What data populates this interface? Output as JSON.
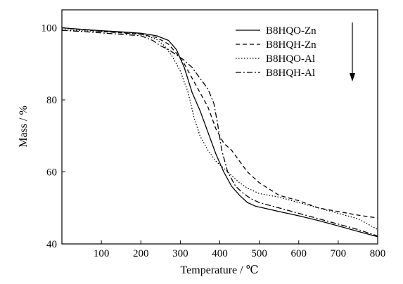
{
  "chart_data": {
    "type": "line",
    "xlabel": "Temperature / ℃",
    "ylabel": "Mass / %",
    "xlim": [
      0,
      800
    ],
    "ylim": [
      40,
      105
    ],
    "x_ticks": [
      100,
      200,
      300,
      400,
      500,
      600,
      700,
      800
    ],
    "y_ticks": [
      40,
      60,
      80,
      100
    ],
    "grid": false,
    "legend_position": "top-right",
    "legend_arrow": "down",
    "series": [
      {
        "name": "B8HQO-Zn",
        "style": "solid",
        "points": [
          [
            0,
            100
          ],
          [
            50,
            99.6
          ],
          [
            100,
            99.2
          ],
          [
            150,
            98.9
          ],
          [
            200,
            98.5
          ],
          [
            240,
            97.8
          ],
          [
            270,
            96.5
          ],
          [
            290,
            94
          ],
          [
            310,
            89
          ],
          [
            330,
            82
          ],
          [
            350,
            77
          ],
          [
            370,
            71
          ],
          [
            390,
            65
          ],
          [
            410,
            60
          ],
          [
            430,
            56
          ],
          [
            450,
            53.5
          ],
          [
            470,
            51.5
          ],
          [
            490,
            50.5
          ],
          [
            510,
            50
          ],
          [
            550,
            49
          ],
          [
            600,
            47.8
          ],
          [
            650,
            46.5
          ],
          [
            700,
            45
          ],
          [
            750,
            43.5
          ],
          [
            800,
            42
          ]
        ]
      },
      {
        "name": "B8HQH-Zn",
        "style": "dashed",
        "points": [
          [
            0,
            100
          ],
          [
            50,
            99.5
          ],
          [
            100,
            99
          ],
          [
            150,
            98.6
          ],
          [
            200,
            98.2
          ],
          [
            240,
            97.3
          ],
          [
            270,
            95.5
          ],
          [
            290,
            93
          ],
          [
            310,
            90
          ],
          [
            330,
            86
          ],
          [
            350,
            82
          ],
          [
            370,
            78
          ],
          [
            390,
            72
          ],
          [
            410,
            68
          ],
          [
            430,
            66
          ],
          [
            450,
            63
          ],
          [
            470,
            60
          ],
          [
            500,
            57
          ],
          [
            550,
            53.5
          ],
          [
            600,
            52
          ],
          [
            650,
            50
          ],
          [
            700,
            49
          ],
          [
            750,
            48
          ],
          [
            800,
            47.2
          ]
        ]
      },
      {
        "name": "B8HQO-Al",
        "style": "dotted",
        "points": [
          [
            0,
            99.5
          ],
          [
            50,
            99.2
          ],
          [
            100,
            99
          ],
          [
            150,
            98.7
          ],
          [
            200,
            98.3
          ],
          [
            240,
            96.8
          ],
          [
            260,
            95
          ],
          [
            280,
            92
          ],
          [
            300,
            88
          ],
          [
            320,
            82
          ],
          [
            335,
            75
          ],
          [
            350,
            70
          ],
          [
            370,
            66
          ],
          [
            390,
            63
          ],
          [
            410,
            61
          ],
          [
            430,
            59
          ],
          [
            450,
            57
          ],
          [
            470,
            55.5
          ],
          [
            500,
            54
          ],
          [
            550,
            53
          ],
          [
            600,
            51.5
          ],
          [
            650,
            50
          ],
          [
            700,
            48.5
          ],
          [
            750,
            47
          ],
          [
            800,
            44
          ]
        ]
      },
      {
        "name": "B8HQH-Al",
        "style": "dashdot",
        "points": [
          [
            0,
            99.3
          ],
          [
            50,
            99
          ],
          [
            100,
            98.6
          ],
          [
            150,
            98.2
          ],
          [
            200,
            97.8
          ],
          [
            230,
            96.5
          ],
          [
            250,
            95
          ],
          [
            270,
            94
          ],
          [
            290,
            92.5
          ],
          [
            310,
            91
          ],
          [
            330,
            89
          ],
          [
            350,
            86
          ],
          [
            370,
            83
          ],
          [
            385,
            79
          ],
          [
            395,
            73
          ],
          [
            405,
            66
          ],
          [
            420,
            60
          ],
          [
            440,
            56
          ],
          [
            460,
            54
          ],
          [
            480,
            52.5
          ],
          [
            500,
            51.5
          ],
          [
            550,
            50
          ],
          [
            600,
            48.5
          ],
          [
            650,
            47
          ],
          [
            700,
            45.5
          ],
          [
            750,
            44
          ],
          [
            800,
            42.2
          ]
        ]
      }
    ]
  }
}
